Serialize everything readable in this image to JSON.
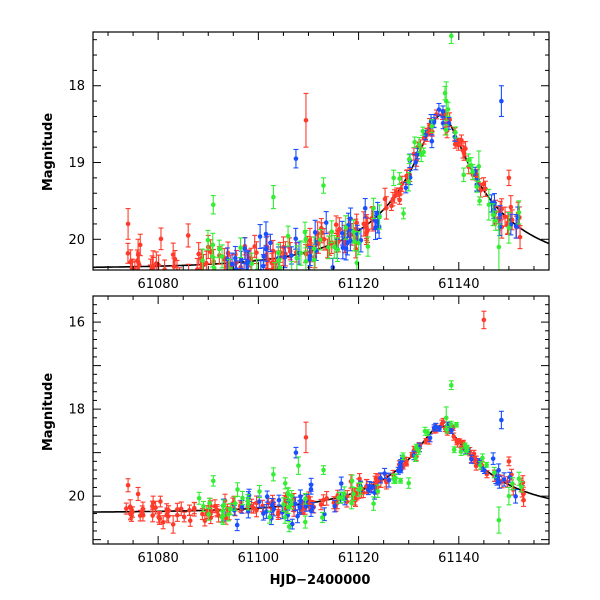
{
  "chart_data": [
    {
      "type": "scatter",
      "panel": "top",
      "title": "",
      "xlabel": "",
      "ylabel": "Magnitude",
      "xlim": [
        61067,
        61158
      ],
      "ylim": [
        20.4,
        17.3
      ],
      "x_ticks": [
        61080,
        61100,
        61120,
        61140
      ],
      "x_tick_labels": [
        "61080",
        "61100",
        "61120",
        "61140"
      ],
      "show_x_tick_labels": true,
      "y_ticks": [
        18,
        19,
        20
      ],
      "y_tick_labels": [
        "18",
        "19",
        "20"
      ],
      "model": {
        "t0": 61136.5,
        "u0": 0.16,
        "tE": 22,
        "m_base": 20.38
      },
      "series": [
        {
          "name": "red",
          "color": "#ff3a2a",
          "n": 170,
          "scatter": 0.07,
          "x_range": [
            61073,
            61153
          ],
          "seed": 11,
          "outliers": [
            [
              61109.5,
              18.45,
              0.35
            ],
            [
              61074,
              19.8,
              0.2
            ],
            [
              61076,
              20.2,
              0.2
            ],
            [
              61079,
              20.35,
              0.2
            ],
            [
              61083,
              20.2,
              0.15
            ],
            [
              61086,
              19.95,
              0.15
            ],
            [
              61090,
              20.1,
              0.15
            ],
            [
              61150,
              19.2,
              0.1
            ]
          ]
        },
        {
          "name": "blue",
          "color": "#1a4fff",
          "n": 70,
          "scatter": 0.1,
          "x_range": [
            61093,
            61152
          ],
          "seed": 23,
          "outliers": [
            [
              61107.5,
              18.95,
              0.12
            ],
            [
              61148.5,
              18.2,
              0.2
            ],
            [
              61101,
              20.35,
              0.15
            ],
            [
              61104,
              20.25,
              0.15
            ],
            [
              61098,
              20.3,
              0.15
            ]
          ]
        },
        {
          "name": "green",
          "color": "#33ee33",
          "n": 60,
          "scatter": 0.15,
          "x_range": [
            61088,
            61153
          ],
          "seed": 37,
          "outliers": [
            [
              61137.5,
              18.2,
              0.25
            ],
            [
              61138.5,
              17.35,
              0.1
            ],
            [
              61144,
              19.05,
              0.2
            ],
            [
              61146,
              19.55,
              0.2
            ],
            [
              61148,
              20.1,
              0.3
            ],
            [
              61150,
              19.85,
              0.2
            ],
            [
              61152,
              19.65,
              0.15
            ],
            [
              61091,
              19.55,
              0.12
            ],
            [
              61103,
              19.45,
              0.15
            ],
            [
              61113,
              19.3,
              0.1
            ],
            [
              61119,
              19.9,
              0.15
            ],
            [
              61120,
              20.05,
              0.15
            ],
            [
              61127,
              19.2,
              0.1
            ],
            [
              61130,
              19.25,
              0.12
            ]
          ]
        }
      ]
    },
    {
      "type": "scatter",
      "panel": "bottom",
      "title": "",
      "xlabel": "HJD−2400000",
      "ylabel": "Magnitude",
      "xlim": [
        61067,
        61158
      ],
      "ylim": [
        21.1,
        15.4
      ],
      "x_ticks": [
        61080,
        61100,
        61120,
        61140
      ],
      "x_tick_labels": [
        "61080",
        "61100",
        "61120",
        "61140"
      ],
      "show_x_tick_labels": true,
      "y_ticks": [
        16,
        18,
        20
      ],
      "y_tick_labels": [
        "16",
        "18",
        "20"
      ],
      "model": {
        "t0": 61136.5,
        "u0": 0.16,
        "tE": 22,
        "m_base": 20.38
      },
      "series": [
        {
          "name": "red",
          "color": "#ff3a2a",
          "n": 170,
          "scatter": 0.07,
          "x_range": [
            61073,
            61153
          ],
          "seed": 53,
          "outliers": [
            [
              61145,
              15.95,
              0.2
            ],
            [
              61109.5,
              18.65,
              0.35
            ],
            [
              61074,
              19.75,
              0.15
            ],
            [
              61076,
              19.95,
              0.15
            ],
            [
              61079,
              20.15,
              0.15
            ],
            [
              61081,
              20.6,
              0.15
            ],
            [
              61083,
              20.65,
              0.2
            ],
            [
              61150,
              19.2,
              0.1
            ]
          ]
        },
        {
          "name": "blue",
          "color": "#1a4fff",
          "n": 70,
          "scatter": 0.1,
          "x_range": [
            61093,
            61152
          ],
          "seed": 67,
          "outliers": [
            [
              61107.5,
              19.0,
              0.12
            ],
            [
              61148.5,
              18.25,
              0.2
            ],
            [
              61098,
              20.35,
              0.15
            ],
            [
              61101,
              20.4,
              0.15
            ]
          ]
        },
        {
          "name": "green",
          "color": "#33ee33",
          "n": 60,
          "scatter": 0.15,
          "x_range": [
            61088,
            61153
          ],
          "seed": 79,
          "outliers": [
            [
              61137.5,
              18.2,
              0.25
            ],
            [
              61138.5,
              17.45,
              0.1
            ],
            [
              61148,
              20.55,
              0.3
            ],
            [
              61150,
              20.0,
              0.2
            ],
            [
              61152,
              19.6,
              0.15
            ],
            [
              61091,
              19.65,
              0.12
            ],
            [
              61093,
              20.45,
              0.2
            ],
            [
              61103,
              19.5,
              0.15
            ],
            [
              61108,
              19.3,
              0.2
            ],
            [
              61113,
              19.4,
              0.1
            ],
            [
              61119,
              19.95,
              0.15
            ],
            [
              61120,
              19.85,
              0.15
            ],
            [
              61127,
              19.6,
              0.1
            ],
            [
              61130,
              19.7,
              0.12
            ]
          ]
        }
      ]
    }
  ]
}
